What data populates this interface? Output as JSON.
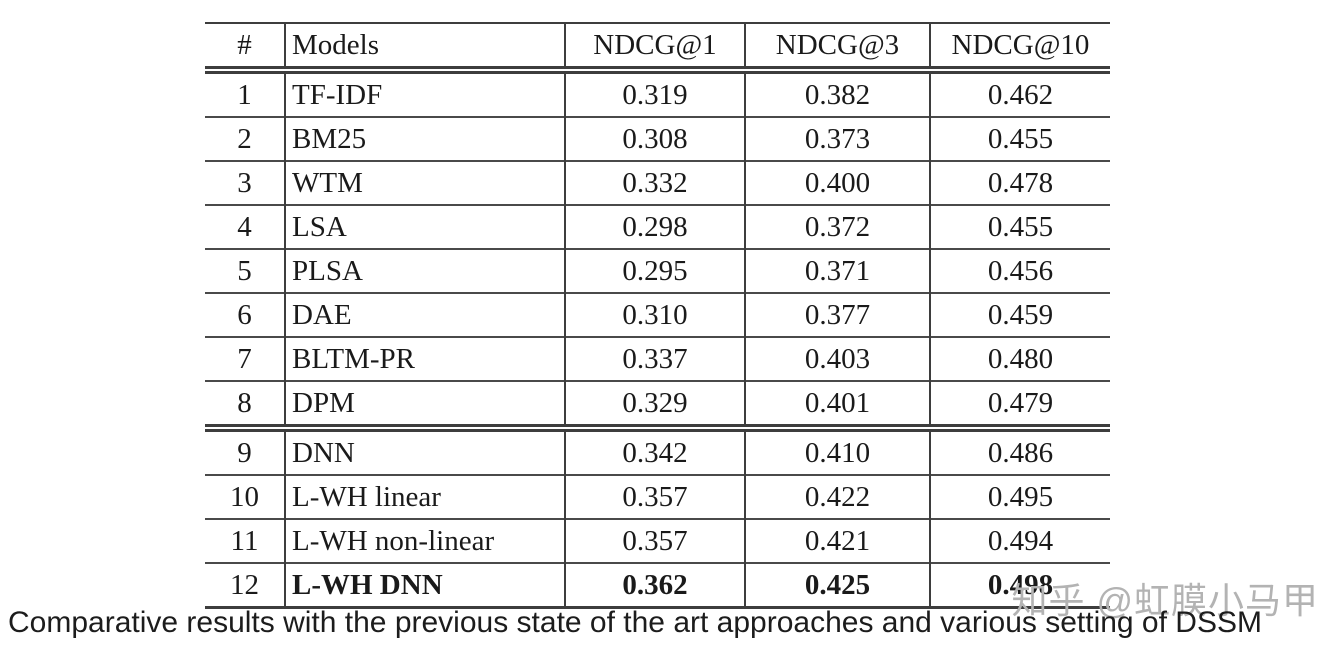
{
  "table": {
    "headers": {
      "num": "#",
      "model": "Models",
      "ndcg1": "NDCG@1",
      "ndcg3": "NDCG@3",
      "ndcg10": "NDCG@10"
    },
    "rows": [
      {
        "num": "1",
        "model": "TF-IDF",
        "ndcg1": "0.319",
        "ndcg3": "0.382",
        "ndcg10": "0.462"
      },
      {
        "num": "2",
        "model": "BM25",
        "ndcg1": "0.308",
        "ndcg3": "0.373",
        "ndcg10": "0.455"
      },
      {
        "num": "3",
        "model": "WTM",
        "ndcg1": "0.332",
        "ndcg3": "0.400",
        "ndcg10": "0.478"
      },
      {
        "num": "4",
        "model": "LSA",
        "ndcg1": "0.298",
        "ndcg3": "0.372",
        "ndcg10": "0.455"
      },
      {
        "num": "5",
        "model": "PLSA",
        "ndcg1": "0.295",
        "ndcg3": "0.371",
        "ndcg10": "0.456"
      },
      {
        "num": "6",
        "model": "DAE",
        "ndcg1": "0.310",
        "ndcg3": "0.377",
        "ndcg10": "0.459"
      },
      {
        "num": "7",
        "model": "BLTM-PR",
        "ndcg1": "0.337",
        "ndcg3": "0.403",
        "ndcg10": "0.480"
      },
      {
        "num": "8",
        "model": "DPM",
        "ndcg1": "0.329",
        "ndcg3": "0.401",
        "ndcg10": "0.479"
      },
      {
        "num": "9",
        "model": "DNN",
        "ndcg1": "0.342",
        "ndcg3": "0.410",
        "ndcg10": "0.486"
      },
      {
        "num": "10",
        "model": "L-WH linear",
        "ndcg1": "0.357",
        "ndcg3": "0.422",
        "ndcg10": "0.495"
      },
      {
        "num": "11",
        "model": "L-WH non-linear",
        "ndcg1": "0.357",
        "ndcg3": "0.421",
        "ndcg10": "0.494"
      },
      {
        "num": "12",
        "model": "L-WH DNN",
        "ndcg1": "0.362",
        "ndcg3": "0.425",
        "ndcg10": "0.498"
      }
    ]
  },
  "caption": "Comparative results with the previous state of the art approaches and various setting of DSSM",
  "watermark": "知乎 @虹膜小马甲",
  "colors": {
    "background": "#ffffff",
    "table_line": "#3d3d3d",
    "text": "#1a1a1a",
    "watermark_gray": "#b3b3b3"
  }
}
